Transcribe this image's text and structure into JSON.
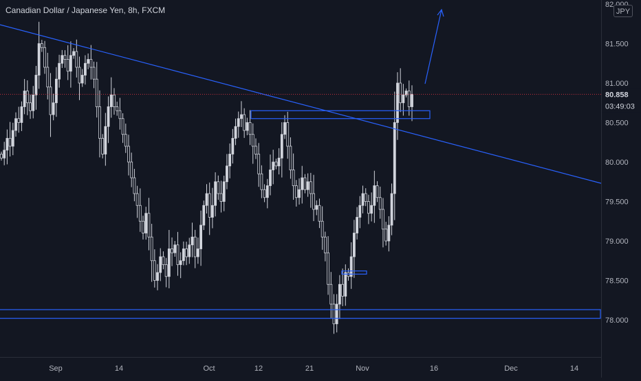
{
  "title": "Canadian Dollar / Japanese Yen, 8h, FXCM",
  "currency_badge": "JPY",
  "colors": {
    "background": "#131722",
    "candle_outline": "#d1d4dc",
    "candle_fill_bear": "#131722",
    "drawing_blue": "#2962ff",
    "axis_text": "#b2b5be",
    "price_line": "#f23645"
  },
  "chart_data": {
    "type": "candlestick",
    "title": "Canadian Dollar / Japanese Yen, 8h, FXCM",
    "ylim": [
      77.8,
      82.0
    ],
    "y_ticks": [
      "82.000",
      "81.500",
      "81.000",
      "80.500",
      "80.000",
      "79.500",
      "79.000",
      "78.500",
      "78.000"
    ],
    "x_ticks": [
      "Sep",
      "14",
      "Oct",
      "12",
      "21",
      "Nov",
      "16",
      "Dec",
      "14"
    ],
    "current_price": "80.858",
    "countdown": "03:49:03",
    "closes": [
      80.05,
      80.15,
      80.3,
      80.2,
      80.4,
      80.55,
      80.5,
      80.7,
      80.9,
      80.75,
      80.65,
      80.85,
      81.1,
      81.5,
      81.45,
      81.2,
      80.95,
      80.6,
      80.75,
      81.05,
      81.25,
      81.35,
      81.3,
      81.15,
      81.35,
      81.4,
      81.2,
      81.0,
      81.1,
      81.25,
      81.3,
      81.2,
      81.05,
      80.7,
      80.3,
      80.1,
      80.45,
      80.7,
      80.85,
      80.7,
      80.65,
      80.55,
      80.35,
      80.2,
      80.0,
      79.8,
      79.6,
      79.45,
      79.25,
      79.1,
      79.35,
      79.05,
      78.75,
      78.5,
      78.6,
      78.8,
      78.7,
      78.55,
      78.9,
      78.85,
      78.95,
      78.7,
      78.75,
      78.9,
      78.8,
      78.95,
      79.05,
      78.8,
      78.9,
      79.2,
      79.45,
      79.6,
      79.3,
      79.45,
      79.75,
      79.6,
      79.5,
      79.75,
      79.95,
      80.1,
      80.3,
      80.45,
      80.55,
      80.6,
      80.4,
      80.5,
      80.35,
      80.2,
      80.1,
      79.85,
      79.65,
      79.55,
      79.7,
      79.9,
      80.0,
      79.95,
      80.05,
      80.35,
      80.5,
      80.2,
      79.9,
      79.7,
      79.55,
      79.65,
      79.8,
      79.65,
      79.75,
      79.6,
      79.4,
      79.45,
      79.25,
      79.05,
      78.85,
      78.45,
      78.2,
      77.95,
      78.2,
      78.45,
      78.3,
      78.6,
      78.55,
      78.8,
      79.1,
      79.3,
      79.45,
      79.6,
      79.5,
      79.35,
      79.45,
      79.7,
      79.55,
      79.4,
      79.15,
      79.0,
      79.2,
      79.6,
      80.5,
      81.0,
      80.75,
      80.85,
      80.9,
      80.7,
      80.858
    ]
  },
  "drawings": {
    "trendline_label": "descending trendline",
    "resistance_zone": [
      80.55,
      80.65
    ],
    "local_support_zone": [
      78.58,
      78.62
    ],
    "major_support_zone": [
      78.02,
      78.13
    ],
    "projection_arrow_from": 80.99,
    "projection_arrow_to": 81.93
  }
}
